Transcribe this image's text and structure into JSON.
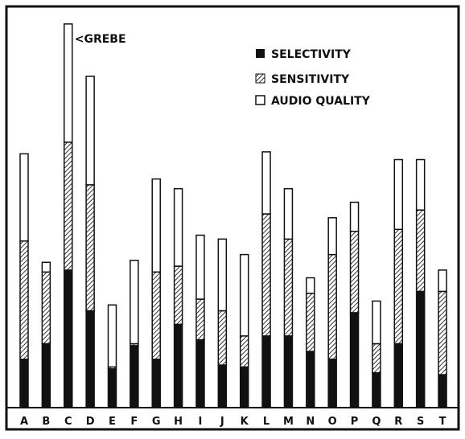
{
  "chart_data": {
    "type": "bar",
    "stacked": true,
    "title": "",
    "xlabel": "",
    "ylabel": "",
    "categories": [
      "A",
      "B",
      "C",
      "D",
      "E",
      "F",
      "G",
      "H",
      "I",
      "J",
      "K",
      "L",
      "M",
      "N",
      "O",
      "P",
      "Q",
      "R",
      "S",
      "T"
    ],
    "ylim": [
      0,
      100
    ],
    "grid": false,
    "legend_position": "top-right",
    "colors": {
      "selectivity": "#111111",
      "sensitivity": "#8a8a8a",
      "audio": "#ffffff",
      "stroke": "#111111"
    },
    "series": [
      {
        "name": "SELECTIVITY",
        "pattern": "solid",
        "values": [
          12.5,
          16.5,
          35.5,
          25.0,
          10.0,
          16.0,
          12.5,
          21.5,
          17.5,
          11.0,
          10.5,
          18.5,
          18.5,
          14.5,
          12.5,
          24.5,
          9.0,
          16.5,
          30.0,
          8.5
        ]
      },
      {
        "name": "SENSITIVITY",
        "pattern": "hatched",
        "values": [
          30.5,
          18.5,
          33.0,
          32.5,
          0.5,
          0.5,
          22.5,
          15.0,
          10.5,
          14.0,
          8.0,
          31.5,
          25.0,
          15.0,
          27.0,
          21.0,
          7.5,
          29.5,
          21.0,
          21.5
        ]
      },
      {
        "name": "AUDIO QUALITY",
        "pattern": "outline",
        "values": [
          22.5,
          2.5,
          30.5,
          28.0,
          16.0,
          21.5,
          24.0,
          20.0,
          16.5,
          18.5,
          21.0,
          16.0,
          13.0,
          4.0,
          9.5,
          7.5,
          11.0,
          18.0,
          13.0,
          5.5
        ]
      }
    ],
    "annotations": [
      {
        "category": "C",
        "text": "<GREBE"
      }
    ]
  }
}
